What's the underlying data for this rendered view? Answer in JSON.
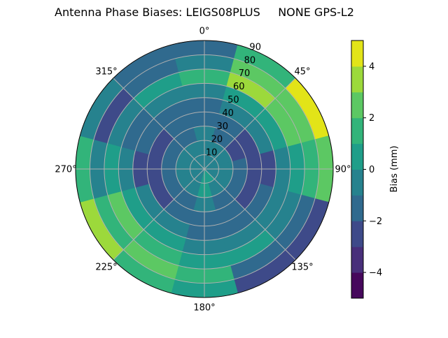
{
  "chart_data": {
    "type": "polar-contour",
    "title": "Antenna Phase Biases: LEIGS08PLUS     NONE GPS-L2",
    "angular_ticks": [
      "0°",
      "45°",
      "90°",
      "135°",
      "180°",
      "225°",
      "270°",
      "315°"
    ],
    "angular_tick_values": [
      0,
      45,
      90,
      135,
      180,
      225,
      270,
      315
    ],
    "radial_ticks": [
      "10",
      "20",
      "30",
      "40",
      "50",
      "60",
      "70",
      "80",
      "90"
    ],
    "radial_tick_values": [
      10,
      20,
      30,
      40,
      50,
      60,
      70,
      80,
      90
    ],
    "radial_range": [
      0,
      90
    ],
    "grid": true,
    "azimuth_direction": "clockwise, 0° at top",
    "azimuths": [
      0,
      30,
      60,
      90,
      120,
      150,
      180,
      210,
      240,
      270,
      300,
      330
    ],
    "zenith_bands": [
      0,
      10,
      20,
      30,
      40,
      50,
      60,
      70,
      80,
      90
    ],
    "bias_mm": [
      [
        -0.5,
        -0.5,
        -0.5,
        -1.5,
        -1.5,
        -0.5,
        1.5,
        -0.5,
        -1.5
      ],
      [
        -0.5,
        -0.5,
        -1.5,
        -1.5,
        -0.5,
        0.5,
        3.5,
        2.5,
        1.5
      ],
      [
        -0.5,
        -0.5,
        -2.5,
        -2.5,
        -0.5,
        0.5,
        2.5,
        2.5,
        4.5
      ],
      [
        -0.5,
        -0.5,
        -1.5,
        -2.5,
        -2.5,
        -0.5,
        0.5,
        1.5,
        2.5
      ],
      [
        -0.5,
        -0.5,
        -1.5,
        -2.5,
        -1.5,
        -0.5,
        -0.5,
        -1.5,
        -2.5
      ],
      [
        0.5,
        -0.5,
        -1.5,
        -1.5,
        -1.5,
        -0.5,
        0.5,
        -1.5,
        -2.5
      ],
      [
        0.5,
        0.5,
        -0.5,
        -1.5,
        -1.5,
        -0.5,
        0.5,
        1.5,
        0.5
      ],
      [
        -0.5,
        -0.5,
        -1.5,
        -1.5,
        -0.5,
        0.5,
        1.5,
        2.5,
        1.5
      ],
      [
        -0.5,
        -0.5,
        -1.5,
        -2.5,
        -0.5,
        0.5,
        2.5,
        1.5,
        3.5
      ],
      [
        -0.5,
        -0.5,
        -1.5,
        -2.5,
        -2.5,
        -0.5,
        0.5,
        -0.5,
        1.5
      ],
      [
        -0.5,
        -0.5,
        -1.5,
        -2.5,
        -1.5,
        -1.5,
        -0.5,
        -2.5,
        -0.5
      ],
      [
        -0.5,
        -0.5,
        -1.5,
        -1.5,
        -1.5,
        -0.5,
        0.5,
        -1.5,
        -1.5
      ]
    ],
    "colorbar": {
      "label": "Bias (mm)",
      "range": [
        -5,
        5
      ],
      "levels": [
        -5,
        -4,
        -3,
        -2,
        -1,
        0,
        1,
        2,
        3,
        4,
        5
      ],
      "ticks": [
        "−4",
        "−2",
        "0",
        "2",
        "4"
      ],
      "tick_values": [
        -4,
        -2,
        0,
        2,
        4
      ],
      "colormap": "viridis",
      "colors": [
        "#46085c",
        "#482f7a",
        "#3e4a89",
        "#306a8e",
        "#26828e",
        "#1f9e89",
        "#32b47a",
        "#5cc863",
        "#9cd93b",
        "#e2e418"
      ]
    }
  }
}
